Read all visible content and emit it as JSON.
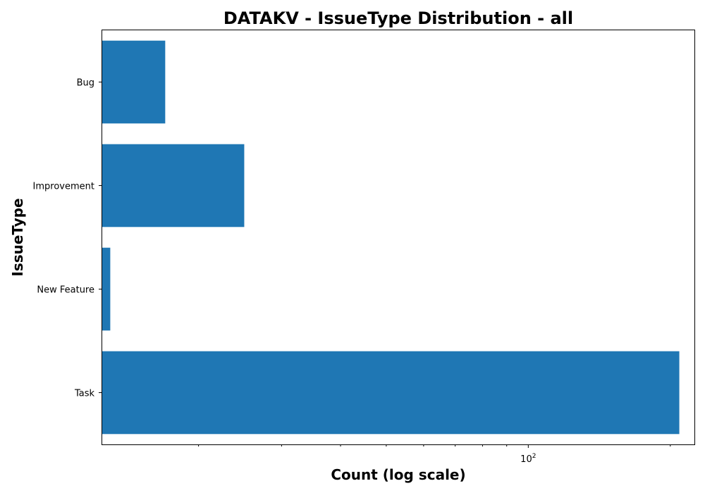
{
  "chart_data": {
    "type": "bar",
    "orientation": "horizontal",
    "title": "DATAKV - IssueType Distribution - all",
    "xlabel": "Count (log scale)",
    "ylabel": "IssueType",
    "xscale": "log",
    "xlim": [
      12.5,
      225
    ],
    "categories": [
      "Bug",
      "Improvement",
      "New Feature",
      "Task"
    ],
    "values": [
      17,
      25,
      13,
      209
    ],
    "x_major_ticks": [
      {
        "value": 100,
        "base": "10",
        "exponent": "2"
      }
    ],
    "x_minor_ticks": [
      20,
      30,
      40,
      50,
      60,
      70,
      80,
      90,
      200
    ],
    "grid": false,
    "legend": "none",
    "colors": {
      "bar": "#1f77b4",
      "frame": "#000000",
      "background": "#ffffff"
    }
  }
}
